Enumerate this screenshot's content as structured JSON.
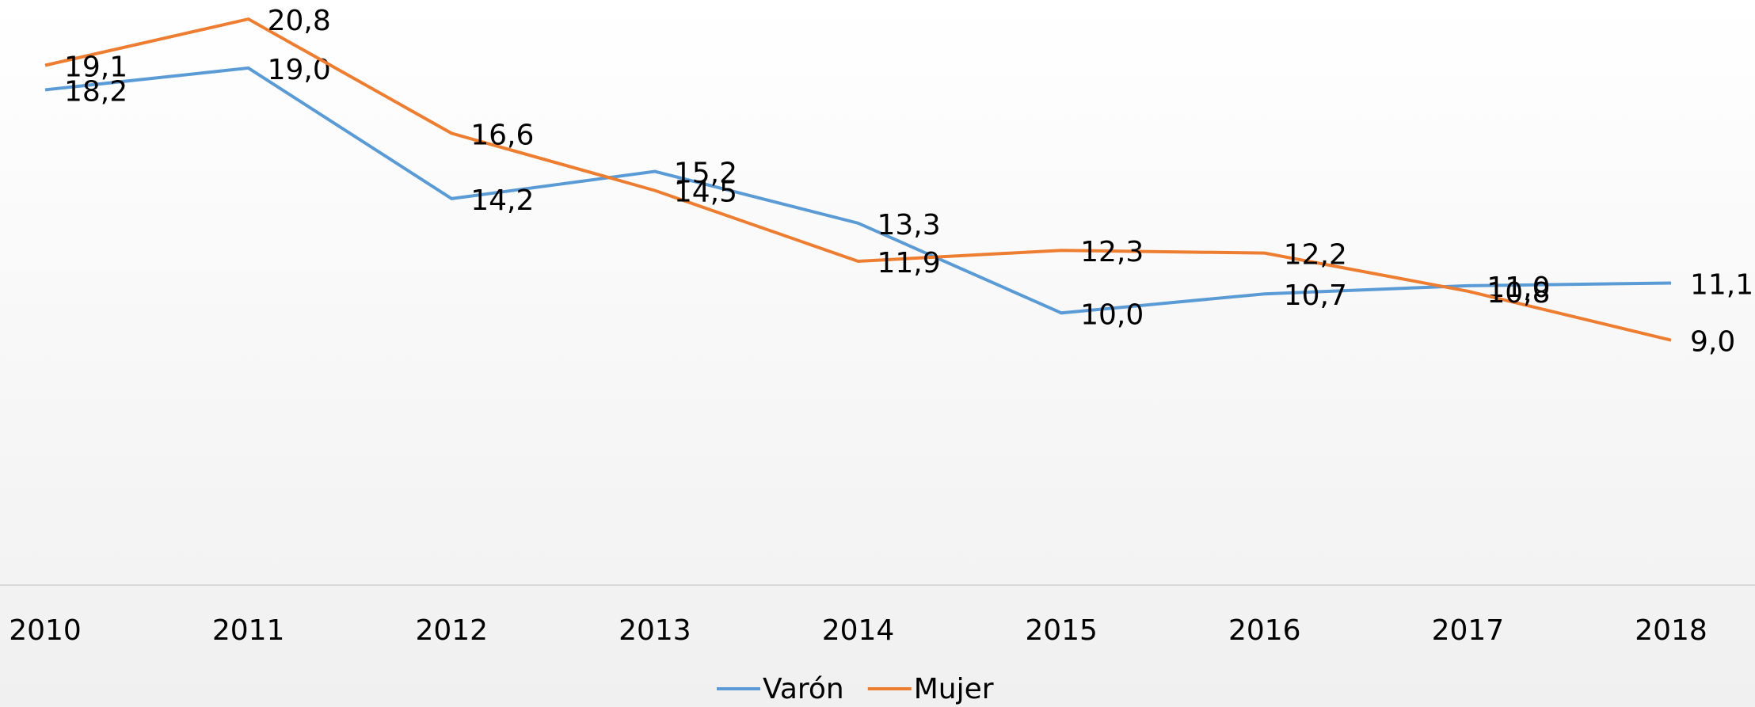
{
  "chart_data": {
    "type": "line",
    "categories": [
      "2010",
      "2011",
      "2012",
      "2013",
      "2014",
      "2015",
      "2016",
      "2017",
      "2018"
    ],
    "series": [
      {
        "name": "Varón",
        "color": "#5b9bd5",
        "values": [
          18.2,
          19.0,
          14.2,
          15.2,
          13.3,
          10.0,
          10.7,
          11.0,
          11.1
        ],
        "value_labels": [
          "18,2",
          "19,0",
          "14,2",
          "15,2",
          "13,3",
          "10,0",
          "10,7",
          "11,0",
          "11,1"
        ]
      },
      {
        "name": "Mujer",
        "color": "#ed7d31",
        "values": [
          19.1,
          20.8,
          16.6,
          14.5,
          11.9,
          12.3,
          12.2,
          10.8,
          9.0
        ],
        "value_labels": [
          "19,1",
          "20,8",
          "16,6",
          "14,5",
          "11,9",
          "12,3",
          "12,2",
          "10,8",
          "9,0"
        ]
      }
    ],
    "ylim": [
      0,
      21.5
    ],
    "legend": "bottom"
  }
}
